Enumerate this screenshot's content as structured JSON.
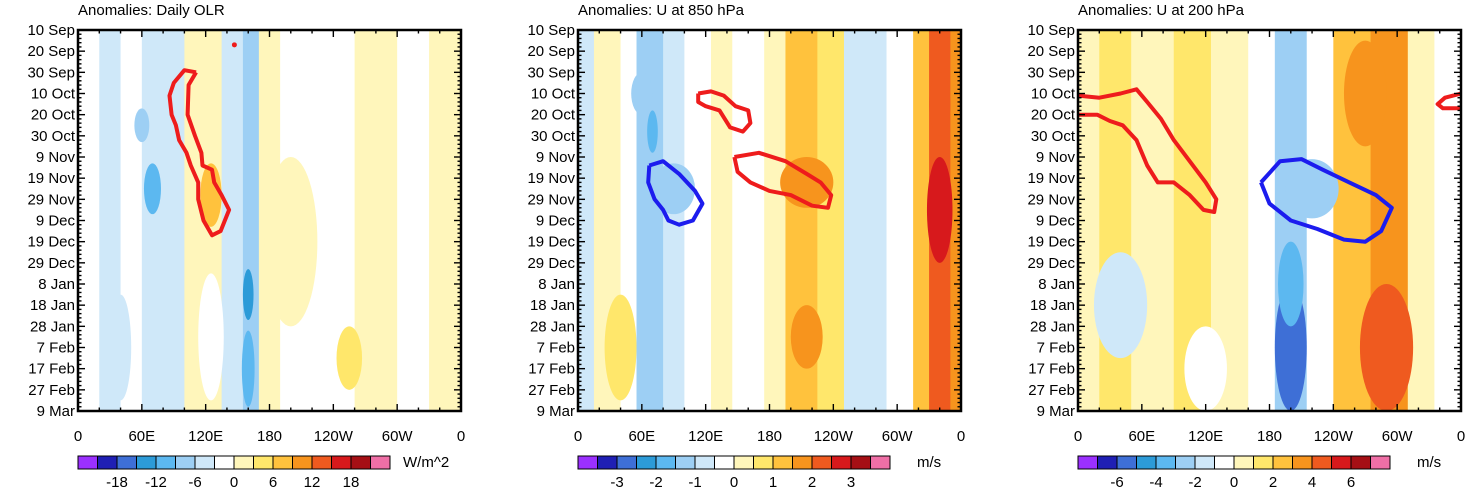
{
  "chart_data": [
    {
      "type": "heatmap",
      "title": "Anomalies: Daily OLR",
      "x_tick_labels": [
        "0",
        "60E",
        "120E",
        "180",
        "120W",
        "60W",
        "0"
      ],
      "x_ticks_deg": [
        0,
        60,
        120,
        180,
        240,
        300,
        360
      ],
      "xlim": [
        0,
        360
      ],
      "y_tick_labels": [
        "10 Sep",
        "20 Sep",
        "30 Sep",
        "10 Oct",
        "20 Oct",
        "30 Oct",
        "9 Nov",
        "19 Nov",
        "29 Nov",
        "9 Dec",
        "19 Dec",
        "29 Dec",
        "8 Jan",
        "18 Jan",
        "28 Jan",
        "7 Feb",
        "17 Feb",
        "27 Feb",
        "9 Mar"
      ],
      "y_days_from_start": [
        0,
        10,
        20,
        30,
        40,
        50,
        60,
        70,
        80,
        90,
        100,
        110,
        120,
        130,
        140,
        150,
        160,
        170,
        180
      ],
      "ylim_days": [
        0,
        180
      ],
      "units": "W/m^2",
      "colorbar_labels": [
        "-18",
        "-12",
        "-6",
        "0",
        "6",
        "12",
        "18"
      ],
      "colorbar_levels": [
        -21,
        -18,
        -15,
        -12,
        -9,
        -6,
        -3,
        0,
        3,
        6,
        9,
        12,
        15,
        18,
        21
      ],
      "bands": [
        {
          "x0": 0,
          "x1": 20,
          "v": -3
        },
        {
          "x0": 20,
          "x1": 40,
          "v": -4
        },
        {
          "x0": 40,
          "x1": 60,
          "v": -2
        },
        {
          "x0": 60,
          "x1": 80,
          "v": -5
        },
        {
          "x0": 80,
          "x1": 100,
          "v": -6
        },
        {
          "x0": 100,
          "x1": 115,
          "v": 1
        },
        {
          "x0": 115,
          "x1": 135,
          "v": 2
        },
        {
          "x0": 135,
          "x1": 155,
          "v": -4
        },
        {
          "x0": 155,
          "x1": 170,
          "v": -7
        },
        {
          "x0": 170,
          "x1": 190,
          "v": 2
        },
        {
          "x0": 190,
          "x1": 220,
          "v": -1
        },
        {
          "x0": 220,
          "x1": 260,
          "v": -2
        },
        {
          "x0": 260,
          "x1": 300,
          "v": 1
        },
        {
          "x0": 300,
          "x1": 330,
          "v": -1
        },
        {
          "x0": 330,
          "x1": 360,
          "v": 0
        }
      ],
      "patches": [
        {
          "lon": 70,
          "day": 75,
          "rx": 8,
          "ry": 12,
          "v": -12
        },
        {
          "lon": 60,
          "day": 45,
          "rx": 7,
          "ry": 8,
          "v": -9
        },
        {
          "lon": 125,
          "day": 78,
          "rx": 10,
          "ry": 15,
          "v": 6
        },
        {
          "lon": 160,
          "day": 125,
          "rx": 5,
          "ry": 12,
          "v": -15
        },
        {
          "lon": 160,
          "day": 160,
          "rx": 6,
          "ry": 18,
          "v": -12
        },
        {
          "lon": 255,
          "day": 155,
          "rx": 12,
          "ry": 15,
          "v": 3
        },
        {
          "lon": 125,
          "day": 145,
          "rx": 12,
          "ry": 30,
          "v": -3
        },
        {
          "lon": 40,
          "day": 150,
          "rx": 10,
          "ry": 25,
          "v": -6
        },
        {
          "lon": 160,
          "day": 8,
          "rx": 4,
          "ry": 6,
          "v": -9
        },
        {
          "lon": 200,
          "day": 100,
          "rx": 25,
          "ry": 40,
          "v": 2
        }
      ],
      "contours": [
        {
          "color": "#ee1c1c",
          "points": [
            [
              111,
              20
            ],
            [
              104,
              26
            ],
            [
              103,
              40
            ],
            [
              110,
              50
            ],
            [
              116,
              58
            ],
            [
              117,
              64
            ],
            [
              126,
              66
            ],
            [
              128,
              72
            ],
            [
              135,
              78
            ],
            [
              142,
              85
            ],
            [
              134,
              95
            ],
            [
              126,
              97
            ],
            [
              118,
              90
            ],
            [
              113,
              80
            ],
            [
              113,
              72
            ],
            [
              106,
              64
            ],
            [
              102,
              58
            ],
            [
              95,
              52
            ],
            [
              92,
              45
            ],
            [
              88,
              40
            ],
            [
              86,
              31
            ],
            [
              90,
              25
            ],
            [
              100,
              19
            ],
            [
              111,
              20
            ]
          ]
        },
        {
          "color": "#ee1c1c",
          "dot": [
            147,
            7
          ]
        }
      ]
    },
    {
      "type": "heatmap",
      "title": "Anomalies: U at 850 hPa",
      "x_tick_labels": [
        "0",
        "60E",
        "120E",
        "180",
        "120W",
        "60W",
        "0"
      ],
      "x_ticks_deg": [
        0,
        60,
        120,
        180,
        240,
        300,
        360
      ],
      "xlim": [
        0,
        360
      ],
      "y_tick_labels": [
        "10 Sep",
        "20 Sep",
        "30 Sep",
        "10 Oct",
        "20 Oct",
        "30 Oct",
        "9 Nov",
        "19 Nov",
        "29 Nov",
        "9 Dec",
        "19 Dec",
        "29 Dec",
        "8 Jan",
        "18 Jan",
        "28 Jan",
        "7 Feb",
        "17 Feb",
        "27 Feb",
        "9 Mar"
      ],
      "y_days_from_start": [
        0,
        10,
        20,
        30,
        40,
        50,
        60,
        70,
        80,
        90,
        100,
        110,
        120,
        130,
        140,
        150,
        160,
        170,
        180
      ],
      "ylim_days": [
        0,
        180
      ],
      "units": "m/s",
      "colorbar_labels": [
        "-3",
        "-2",
        "-1",
        "0",
        "1",
        "2",
        "3"
      ],
      "colorbar_levels": [
        -3.5,
        -3,
        -2.5,
        -2,
        -1.5,
        -1,
        -0.5,
        0,
        0.5,
        1,
        1.5,
        2,
        2.5,
        3,
        3.5
      ],
      "bands": [
        {
          "x0": 0,
          "x1": 15,
          "v": -0.6
        },
        {
          "x0": 15,
          "x1": 40,
          "v": 0.4
        },
        {
          "x0": 40,
          "x1": 55,
          "v": -0.3
        },
        {
          "x0": 55,
          "x1": 80,
          "v": -1.2
        },
        {
          "x0": 80,
          "x1": 100,
          "v": -0.8
        },
        {
          "x0": 100,
          "x1": 125,
          "v": -0.5
        },
        {
          "x0": 125,
          "x1": 145,
          "v": 0.4
        },
        {
          "x0": 145,
          "x1": 175,
          "v": -0.3
        },
        {
          "x0": 175,
          "x1": 195,
          "v": 0.4
        },
        {
          "x0": 195,
          "x1": 225,
          "v": 1.2
        },
        {
          "x0": 225,
          "x1": 250,
          "v": 0.6
        },
        {
          "x0": 250,
          "x1": 290,
          "v": -0.6
        },
        {
          "x0": 290,
          "x1": 315,
          "v": -0.3
        },
        {
          "x0": 315,
          "x1": 330,
          "v": 1.3
        },
        {
          "x0": 330,
          "x1": 350,
          "v": 2.2
        },
        {
          "x0": 350,
          "x1": 360,
          "v": 1.6
        }
      ],
      "patches": [
        {
          "lon": 70,
          "day": 48,
          "rx": 5,
          "ry": 10,
          "v": -1.7
        },
        {
          "lon": 90,
          "day": 75,
          "rx": 20,
          "ry": 12,
          "v": -1.3
        },
        {
          "lon": 215,
          "day": 72,
          "rx": 25,
          "ry": 12,
          "v": 1.7
        },
        {
          "lon": 215,
          "day": 145,
          "rx": 15,
          "ry": 15,
          "v": 1.7
        },
        {
          "lon": 340,
          "day": 85,
          "rx": 12,
          "ry": 25,
          "v": 2.7
        },
        {
          "lon": 340,
          "day": 35,
          "rx": 10,
          "ry": 15,
          "v": 2.2
        },
        {
          "lon": 40,
          "day": 150,
          "rx": 15,
          "ry": 25,
          "v": 0.6
        },
        {
          "lon": 60,
          "day": 30,
          "rx": 10,
          "ry": 10,
          "v": -1.1
        }
      ],
      "contours": [
        {
          "color": "#ee1c1c",
          "points": [
            [
              113,
              30
            ],
            [
              125,
              29
            ],
            [
              137,
              31
            ],
            [
              148,
              36
            ],
            [
              160,
              38
            ],
            [
              162,
              44
            ],
            [
              155,
              48
            ],
            [
              143,
              46
            ],
            [
              133,
              38
            ],
            [
              120,
              36
            ],
            [
              113,
              34
            ],
            [
              113,
              30
            ]
          ]
        },
        {
          "color": "#ee1c1c",
          "points": [
            [
              147,
              60
            ],
            [
              170,
              58
            ],
            [
              195,
              62
            ],
            [
              215,
              68
            ],
            [
              228,
              72
            ],
            [
              238,
              78
            ],
            [
              235,
              84
            ],
            [
              220,
              83
            ],
            [
              200,
              78
            ],
            [
              180,
              76
            ],
            [
              162,
              72
            ],
            [
              150,
              67
            ],
            [
              147,
              60
            ]
          ]
        },
        {
          "color": "#1c1cee",
          "points": [
            [
              67,
              64
            ],
            [
              80,
              62
            ],
            [
              95,
              68
            ],
            [
              110,
              76
            ],
            [
              117,
              82
            ],
            [
              108,
              90
            ],
            [
              95,
              92
            ],
            [
              85,
              90
            ],
            [
              80,
              85
            ],
            [
              72,
              80
            ],
            [
              66,
              72
            ],
            [
              67,
              64
            ]
          ]
        }
      ]
    },
    {
      "type": "heatmap",
      "title": "Anomalies: U at 200 hPa",
      "x_tick_labels": [
        "0",
        "60E",
        "120E",
        "180",
        "120W",
        "60W",
        "0"
      ],
      "x_ticks_deg": [
        0,
        60,
        120,
        180,
        240,
        300,
        360
      ],
      "xlim": [
        0,
        360
      ],
      "y_tick_labels": [
        "10 Sep",
        "20 Sep",
        "30 Sep",
        "10 Oct",
        "20 Oct",
        "30 Oct",
        "9 Nov",
        "19 Nov",
        "29 Nov",
        "9 Dec",
        "19 Dec",
        "29 Dec",
        "8 Jan",
        "18 Jan",
        "28 Jan",
        "7 Feb",
        "17 Feb",
        "27 Feb",
        "9 Mar"
      ],
      "y_days_from_start": [
        0,
        10,
        20,
        30,
        40,
        50,
        60,
        70,
        80,
        90,
        100,
        110,
        120,
        130,
        140,
        150,
        160,
        170,
        180
      ],
      "ylim_days": [
        0,
        180
      ],
      "units": "m/s",
      "colorbar_labels": [
        "-6",
        "-4",
        "-2",
        "0",
        "2",
        "4",
        "6"
      ],
      "colorbar_levels": [
        -7,
        -6,
        -5,
        -4,
        -3,
        -2,
        -1,
        0,
        1,
        2,
        3,
        4,
        5,
        6,
        7
      ],
      "bands": [
        {
          "x0": 0,
          "x1": 20,
          "v": 0.5
        },
        {
          "x0": 20,
          "x1": 50,
          "v": 1.3
        },
        {
          "x0": 50,
          "x1": 90,
          "v": 0.6
        },
        {
          "x0": 90,
          "x1": 125,
          "v": 1.5
        },
        {
          "x0": 125,
          "x1": 160,
          "v": 0.5
        },
        {
          "x0": 160,
          "x1": 185,
          "v": -0.6
        },
        {
          "x0": 185,
          "x1": 215,
          "v": -2.2
        },
        {
          "x0": 215,
          "x1": 240,
          "v": -0.5
        },
        {
          "x0": 240,
          "x1": 275,
          "v": 2.5
        },
        {
          "x0": 275,
          "x1": 310,
          "v": 3.2
        },
        {
          "x0": 310,
          "x1": 335,
          "v": 0.6
        },
        {
          "x0": 335,
          "x1": 360,
          "v": -0.5
        }
      ],
      "patches": [
        {
          "lon": 200,
          "day": 150,
          "rx": 15,
          "ry": 30,
          "v": -5.5
        },
        {
          "lon": 200,
          "day": 120,
          "rx": 12,
          "ry": 20,
          "v": -3.5
        },
        {
          "lon": 290,
          "day": 150,
          "rx": 25,
          "ry": 30,
          "v": 4.5
        },
        {
          "lon": 270,
          "day": 30,
          "rx": 20,
          "ry": 25,
          "v": 3.5
        },
        {
          "lon": 220,
          "day": 75,
          "rx": 25,
          "ry": 14,
          "v": -2.2
        },
        {
          "lon": 40,
          "day": 130,
          "rx": 25,
          "ry": 25,
          "v": -1.5
        },
        {
          "lon": 120,
          "day": 160,
          "rx": 20,
          "ry": 20,
          "v": -0.8
        }
      ],
      "contours": [
        {
          "color": "#ee1c1c",
          "points": [
            [
              0,
              31
            ],
            [
              20,
              32
            ],
            [
              40,
              30
            ],
            [
              55,
              28
            ],
            [
              65,
              34
            ],
            [
              78,
              42
            ],
            [
              90,
              52
            ],
            [
              105,
              62
            ],
            [
              120,
              72
            ],
            [
              130,
              80
            ],
            [
              128,
              86
            ],
            [
              118,
              85
            ],
            [
              105,
              78
            ],
            [
              90,
              72
            ],
            [
              75,
              72
            ],
            [
              65,
              64
            ],
            [
              55,
              52
            ],
            [
              42,
              45
            ],
            [
              30,
              43
            ],
            [
              18,
              40
            ],
            [
              0,
              40
            ]
          ]
        },
        {
          "color": "#ee1c1c",
          "points": [
            [
              360,
              30
            ],
            [
              345,
              32
            ],
            [
              338,
              35
            ],
            [
              343,
              37
            ],
            [
              360,
              37
            ]
          ]
        },
        {
          "color": "#1c1cee",
          "points": [
            [
              172,
              72
            ],
            [
              190,
              62
            ],
            [
              210,
              61
            ],
            [
              230,
              66
            ],
            [
              255,
              72
            ],
            [
              280,
              78
            ],
            [
              295,
              84
            ],
            [
              285,
              95
            ],
            [
              270,
              100
            ],
            [
              250,
              99
            ],
            [
              225,
              94
            ],
            [
              200,
              90
            ],
            [
              180,
              82
            ],
            [
              172,
              72
            ]
          ]
        }
      ]
    }
  ],
  "colors": {
    "palette": [
      "#9b30ff",
      "#1f1fb4",
      "#3e6fd6",
      "#2c9bd8",
      "#5cb8f0",
      "#9dcff4",
      "#cfe8f9",
      "#ffffff",
      "#fff6bb",
      "#ffe76b",
      "#ffc23d",
      "#f7941d",
      "#ef5a1f",
      "#d7191c",
      "#a50f15",
      "#ef6fa6"
    ],
    "contour_red": "#ee1c1c",
    "contour_blue": "#1c1cee"
  }
}
